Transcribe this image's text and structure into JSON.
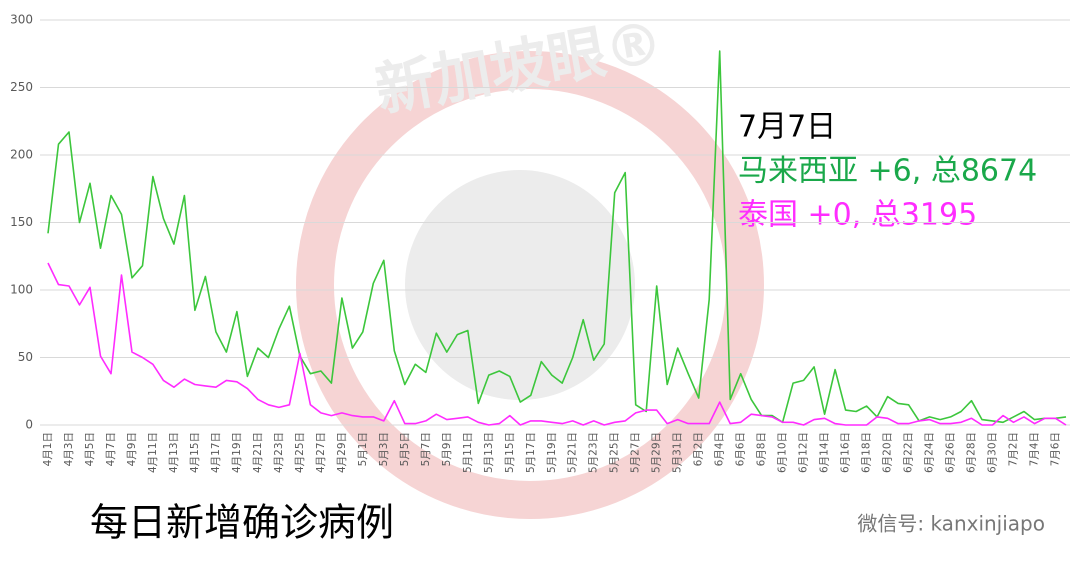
{
  "chart_data": {
    "type": "line",
    "categories": [
      "4月1日",
      null,
      "4月3日",
      null,
      "4月5日",
      null,
      "4月7日",
      null,
      "4月9日",
      null,
      "4月11日",
      null,
      "4月13日",
      null,
      "4月15日",
      null,
      "4月17日",
      null,
      "4月19日",
      null,
      "4月21日",
      null,
      "4月23日",
      null,
      "4月25日",
      null,
      "4月27日",
      null,
      "4月29日",
      null,
      "5月1日",
      null,
      "5月3日",
      null,
      "5月5日",
      null,
      "5月7日",
      null,
      "5月9日",
      null,
      "5月11日",
      null,
      "5月13日",
      null,
      "5月15日",
      null,
      "5月17日",
      null,
      "5月19日",
      null,
      "5月21日",
      null,
      "5月23日",
      null,
      "5月25日",
      null,
      "5月27日",
      null,
      "5月29日",
      null,
      "5月31日",
      null,
      "6月2日",
      null,
      "6月4日",
      null,
      "6月6日",
      null,
      "6月8日",
      null,
      "6月10日",
      null,
      "6月12日",
      null,
      "6月14日",
      null,
      "6月16日",
      null,
      "6月18日",
      null,
      "6月20日",
      null,
      "6月22日",
      null,
      "6月24日",
      null,
      "6月26日",
      null,
      "6月28日",
      null,
      "6月30日",
      null,
      "7月2日",
      null,
      "7月4日",
      null,
      "7月6日",
      null
    ],
    "series": [
      {
        "color": "#3cc63c",
        "values": [
          142,
          208,
          217,
          150,
          179,
          131,
          170,
          156,
          109,
          118,
          184,
          153,
          134,
          170,
          85,
          110,
          69,
          54,
          84,
          36,
          57,
          50,
          71,
          88,
          51,
          38,
          40,
          31,
          94,
          57,
          69,
          105,
          122,
          55,
          30,
          45,
          39,
          68,
          54,
          67,
          70,
          16,
          37,
          40,
          36,
          17,
          22,
          47,
          37,
          31,
          50,
          78,
          48,
          60,
          172,
          187,
          15,
          10,
          103,
          30,
          57,
          38,
          20,
          93,
          277,
          19,
          38,
          19,
          7,
          7,
          2,
          31,
          33,
          43,
          8,
          41,
          11,
          10,
          14,
          6,
          21,
          16,
          15,
          3,
          6,
          4,
          6,
          10,
          18,
          4,
          3,
          2,
          6,
          10,
          4,
          5,
          5,
          6
        ]
      },
      {
        "color": "#ff2cff",
        "values": [
          120,
          104,
          103,
          89,
          102,
          51,
          38,
          111,
          54,
          50,
          45,
          33,
          28,
          34,
          30,
          29,
          28,
          33,
          32,
          27,
          19,
          15,
          13,
          15,
          53,
          15,
          9,
          7,
          9,
          7,
          6,
          6,
          3,
          18,
          1,
          1,
          3,
          8,
          4,
          5,
          6,
          2,
          0,
          1,
          7,
          0,
          3,
          3,
          2,
          1,
          3,
          0,
          3,
          0,
          2,
          3,
          9,
          11,
          11,
          1,
          4,
          1,
          1,
          1,
          17,
          1,
          2,
          8,
          7,
          6,
          2,
          2,
          0,
          4,
          5,
          1,
          0,
          0,
          0,
          6,
          5,
          1,
          1,
          3,
          4,
          1,
          1,
          2,
          5,
          0,
          0,
          7,
          2,
          6,
          1,
          5,
          5,
          0
        ]
      }
    ],
    "ylim": [
      0,
      300
    ],
    "yticks": [
      0,
      50,
      100,
      150,
      200,
      250,
      300
    ],
    "grid": true,
    "annotations": [
      "7月7日",
      "马来西亚 +6, 总8674",
      "泰国 +0, 总3195"
    ],
    "caption": "每日新增确诊病例",
    "watermark": "新加坡眼®",
    "wechat": "微信号: kanxinjiapo"
  }
}
